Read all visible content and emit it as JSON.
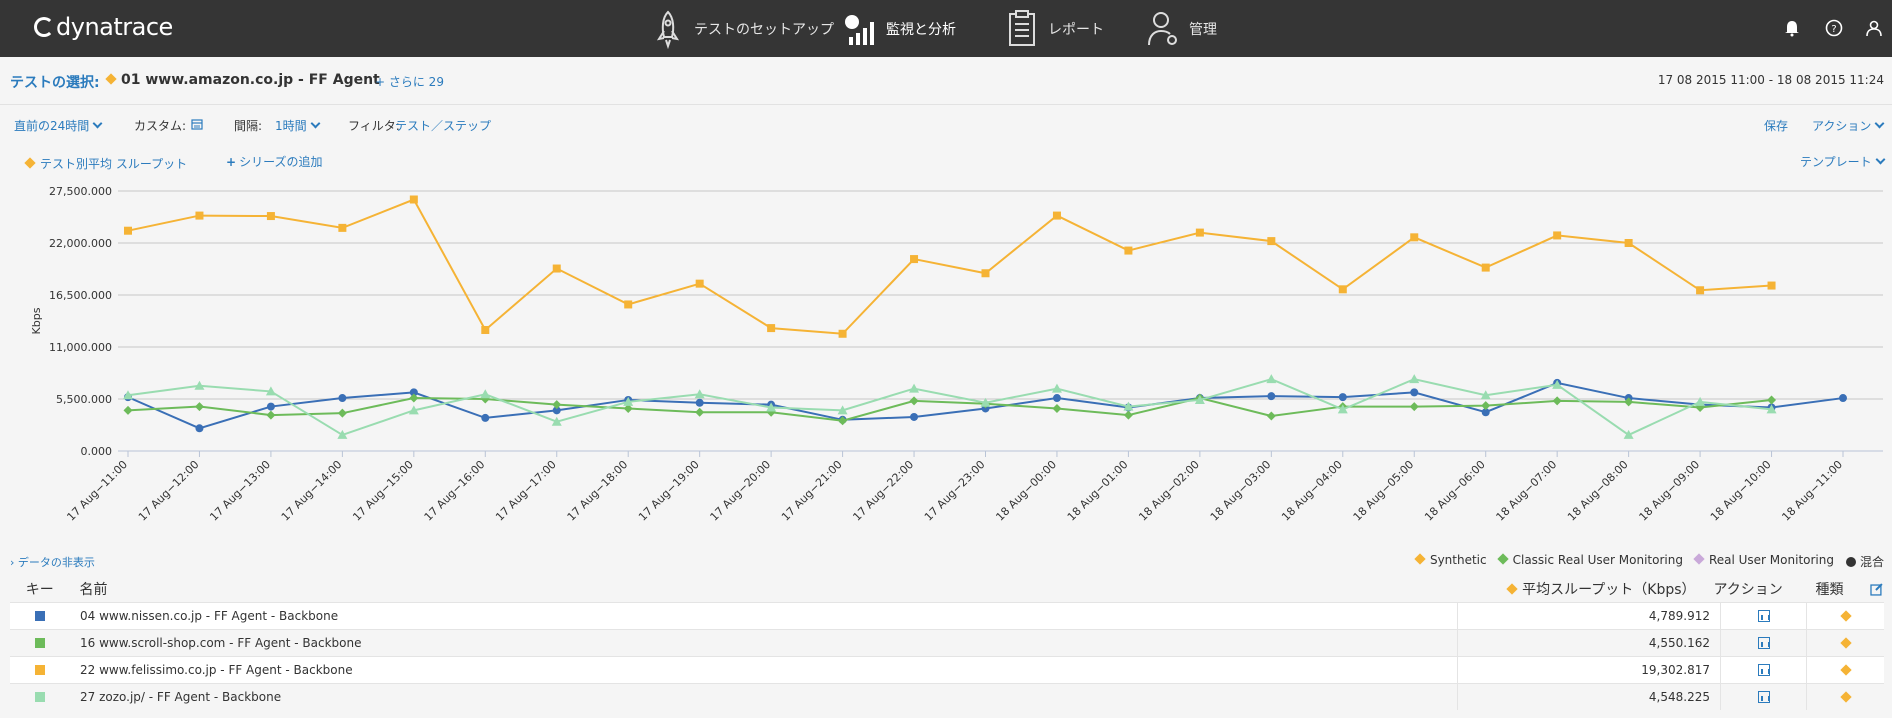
{
  "header": {
    "logo": "dynatrace",
    "nav": [
      {
        "label": "テストのセットアップ",
        "icon": "rocket-icon"
      },
      {
        "label": "監視と分析",
        "icon": "monitor-chart-icon"
      },
      {
        "label": "レポート",
        "icon": "report-icon"
      },
      {
        "label": "管理",
        "icon": "user-gear-icon"
      }
    ]
  },
  "selection": {
    "label": "テストの選択:",
    "value": "01 www.amazon.co.jp - FF Agent",
    "more": "+ さらに 29",
    "time_range": "17 08 2015 11:00 - 18 08 2015 11:24"
  },
  "filters": {
    "range": "直前の24時間",
    "custom_label": "カスタム:",
    "interval_label": "間隔:",
    "interval_value": "1時間",
    "filter_label": "フィルタ:",
    "filter_value": "テスト／ステップ",
    "save": "保存",
    "action": "アクション"
  },
  "series_bar": {
    "series_label": "テスト別平均 スループット",
    "add_series": "シリーズの追加",
    "template": "テンプレート"
  },
  "hide_data": "› データの非表示",
  "legend": [
    {
      "label": "Synthetic",
      "color": "#f5b335"
    },
    {
      "label": "Classic Real User Monitoring",
      "color": "#6dbb5a"
    },
    {
      "label": "Real User Monitoring",
      "color": "#c9a9d9"
    },
    {
      "label": "混合",
      "color": "#333333"
    }
  ],
  "chart_data": {
    "type": "line",
    "ylabel": "Kbps",
    "ylim": [
      0,
      27500
    ],
    "yticks": [
      "0.000",
      "5,500.000",
      "11,000.000",
      "16,500.000",
      "22,000.000",
      "27,500.000"
    ],
    "ytick_values": [
      0,
      5500,
      11000,
      16500,
      22000,
      27500
    ],
    "categories": [
      "17 Aug−11:00",
      "17 Aug−12:00",
      "17 Aug−13:00",
      "17 Aug−14:00",
      "17 Aug−15:00",
      "17 Aug−16:00",
      "17 Aug−17:00",
      "17 Aug−18:00",
      "17 Aug−19:00",
      "17 Aug−20:00",
      "17 Aug−21:00",
      "17 Aug−22:00",
      "17 Aug−23:00",
      "18 Aug−00:00",
      "18 Aug−01:00",
      "18 Aug−02:00",
      "18 Aug−03:00",
      "18 Aug−04:00",
      "18 Aug−05:00",
      "18 Aug−06:00",
      "18 Aug−07:00",
      "18 Aug−08:00",
      "18 Aug−09:00",
      "18 Aug−10:00",
      "18 Aug−11:00"
    ],
    "series": [
      {
        "color": "#f5b335",
        "marker": "square",
        "values": [
          23300,
          24900,
          24850,
          23600,
          26600,
          12800,
          19300,
          15500,
          17700,
          13000,
          12400,
          20300,
          18800,
          24900,
          21200,
          23100,
          22200,
          17100,
          22600,
          19400,
          22800,
          22000,
          17000,
          17500,
          null
        ]
      },
      {
        "color": "#3a6fb6",
        "marker": "circle",
        "values": [
          5700,
          2400,
          4700,
          5600,
          6200,
          3500,
          4300,
          5400,
          5100,
          4900,
          3300,
          3600,
          4500,
          5600,
          4600,
          5600,
          5800,
          5700,
          6200,
          4100,
          7200,
          5600,
          4900,
          4600,
          5600
        ]
      },
      {
        "color": "#6dbb5a",
        "marker": "diamond",
        "values": [
          4300,
          4700,
          3800,
          4000,
          5600,
          5500,
          4900,
          4500,
          4100,
          4100,
          3200,
          5300,
          5000,
          4500,
          3800,
          5600,
          3700,
          4700,
          4700,
          4800,
          5300,
          5200,
          4600,
          5400,
          null
        ]
      },
      {
        "color": "#99dcb0",
        "marker": "triangle",
        "values": [
          5900,
          6900,
          6300,
          1700,
          4300,
          6000,
          3100,
          5200,
          6000,
          4600,
          4300,
          6600,
          5100,
          6600,
          4700,
          5400,
          7600,
          4400,
          7600,
          5900,
          7000,
          1700,
          5200,
          4400,
          null
        ]
      }
    ]
  },
  "table": {
    "headers": {
      "key": "キー",
      "name": "名前",
      "value": "平均スループット（Kbps）",
      "action": "アクション",
      "type": "種類"
    },
    "rows": [
      {
        "color": "#3a6fb6",
        "name": "04 www.nissen.co.jp - FF Agent - Backbone",
        "value": "4,789.912"
      },
      {
        "color": "#6dbb5a",
        "name": "16 www.scroll-shop.com - FF Agent - Backbone",
        "value": "4,550.162"
      },
      {
        "color": "#f5b335",
        "name": "22 www.felissimo.co.jp - FF Agent - Backbone",
        "value": "19,302.817"
      },
      {
        "color": "#99dcb0",
        "name": "27 zozo.jp/ - FF Agent - Backbone",
        "value": "4,548.225"
      }
    ]
  }
}
